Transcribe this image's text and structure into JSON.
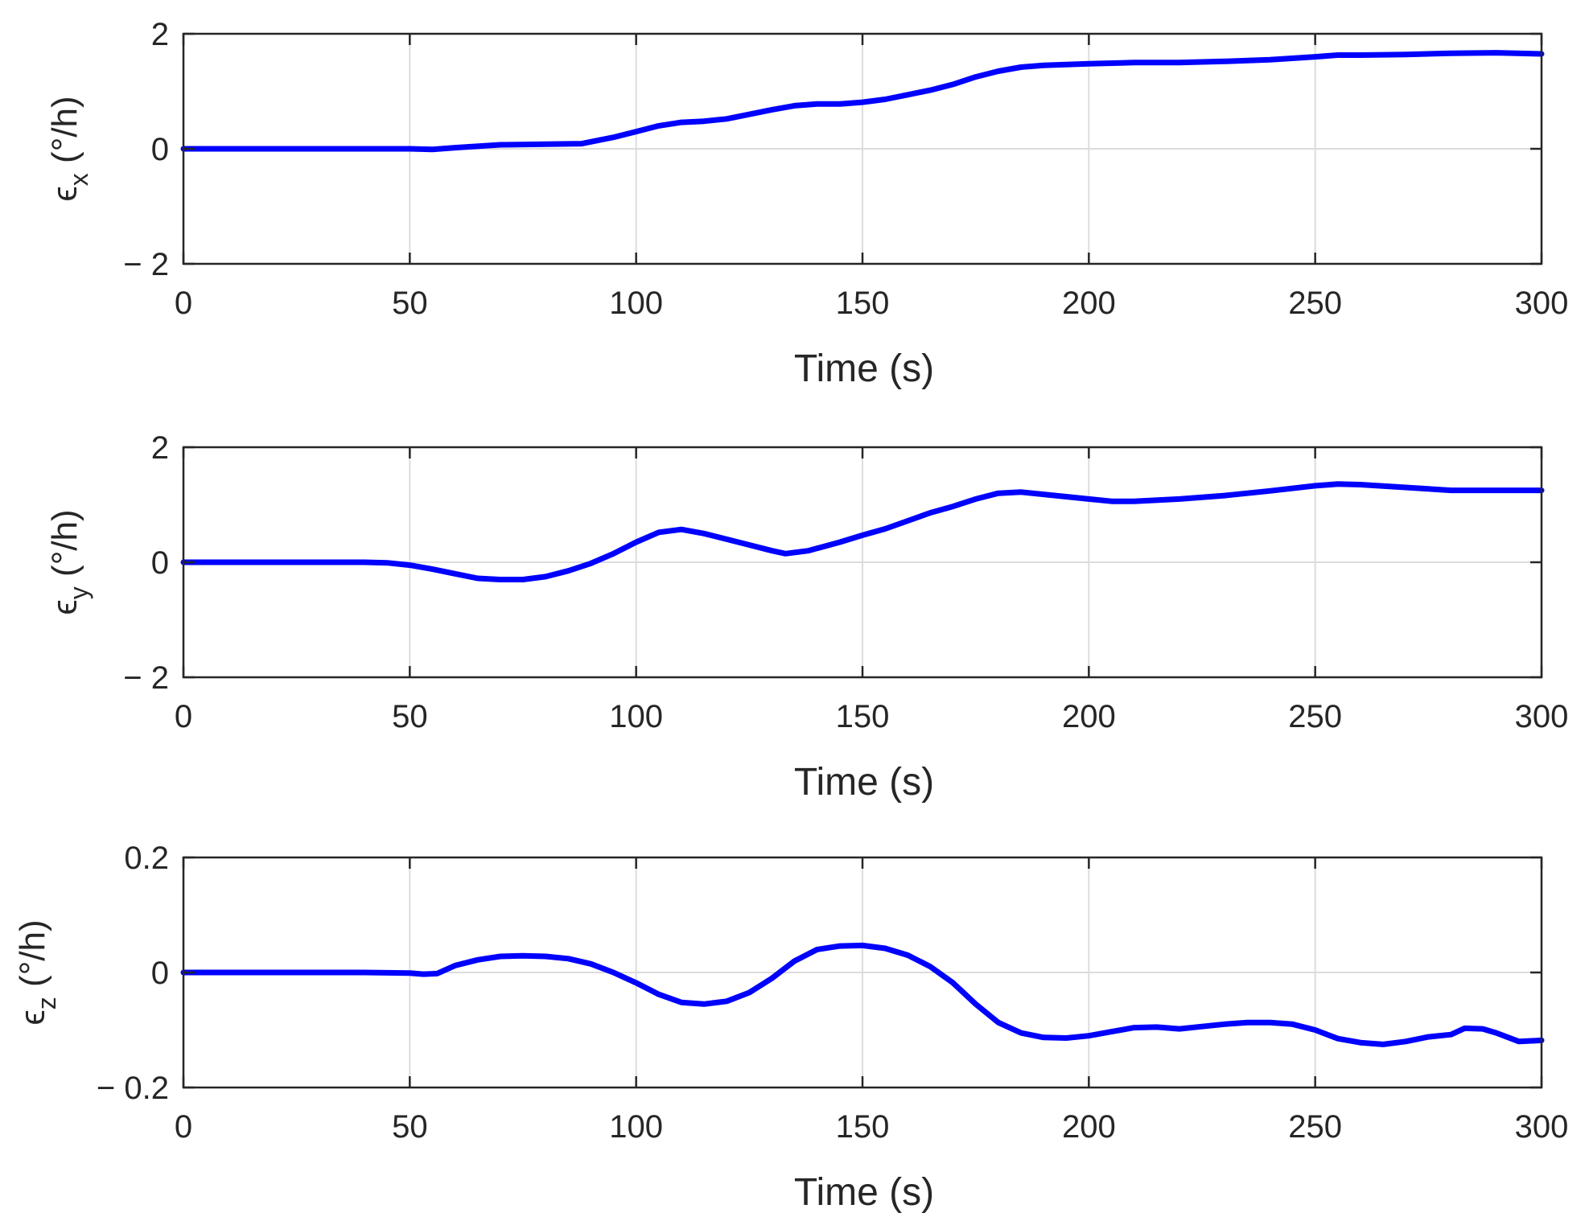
{
  "chart_data": [
    {
      "type": "line",
      "xlabel": "Time (s)",
      "ylabel": "(°/h)",
      "ylabel_symbol": "ϵ",
      "ylabel_sub": "x",
      "xlim": [
        0,
        300
      ],
      "ylim": [
        -2,
        2
      ],
      "xticks": [
        "0",
        "50",
        "100",
        "150",
        "200",
        "250",
        "300"
      ],
      "yticks": [
        "2",
        "0",
        "− 2"
      ],
      "ytick_values": [
        2,
        0,
        -2
      ],
      "grid": true,
      "line_color": "#0000ff",
      "series": [
        {
          "x": [
            0,
            20,
            40,
            50,
            55,
            60,
            70,
            80,
            88,
            95,
            100,
            105,
            110,
            115,
            120,
            130,
            135,
            140,
            145,
            150,
            155,
            160,
            165,
            170,
            175,
            180,
            185,
            190,
            200,
            210,
            220,
            230,
            240,
            250,
            255,
            260,
            270,
            280,
            290,
            300
          ],
          "y": [
            0,
            0,
            0,
            0,
            -0.01,
            0.02,
            0.07,
            0.08,
            0.09,
            0.2,
            0.3,
            0.4,
            0.46,
            0.48,
            0.52,
            0.68,
            0.75,
            0.78,
            0.78,
            0.81,
            0.86,
            0.94,
            1.02,
            1.12,
            1.25,
            1.35,
            1.42,
            1.45,
            1.48,
            1.5,
            1.5,
            1.52,
            1.55,
            1.6,
            1.63,
            1.63,
            1.64,
            1.66,
            1.67,
            1.65
          ]
        }
      ]
    },
    {
      "type": "line",
      "xlabel": "Time (s)",
      "ylabel": "(°/h)",
      "ylabel_symbol": "ϵ",
      "ylabel_sub": "y",
      "xlim": [
        0,
        300
      ],
      "ylim": [
        -2,
        2
      ],
      "xticks": [
        "0",
        "50",
        "100",
        "150",
        "200",
        "250",
        "300"
      ],
      "yticks": [
        "2",
        "0",
        "− 2"
      ],
      "ytick_values": [
        2,
        0,
        -2
      ],
      "grid": true,
      "line_color": "#0000ff",
      "series": [
        {
          "x": [
            0,
            20,
            40,
            45,
            50,
            55,
            60,
            65,
            70,
            75,
            80,
            85,
            90,
            95,
            100,
            105,
            110,
            115,
            120,
            125,
            130,
            133,
            138,
            145,
            150,
            155,
            160,
            165,
            170,
            175,
            180,
            185,
            190,
            200,
            205,
            210,
            220,
            230,
            240,
            250,
            255,
            260,
            270,
            280,
            290,
            300
          ],
          "y": [
            0,
            0,
            0,
            -0.01,
            -0.05,
            -0.12,
            -0.2,
            -0.28,
            -0.3,
            -0.3,
            -0.25,
            -0.15,
            -0.02,
            0.15,
            0.35,
            0.52,
            0.57,
            0.5,
            0.4,
            0.3,
            0.2,
            0.15,
            0.2,
            0.35,
            0.47,
            0.58,
            0.72,
            0.86,
            0.97,
            1.1,
            1.2,
            1.22,
            1.18,
            1.1,
            1.06,
            1.06,
            1.1,
            1.16,
            1.24,
            1.33,
            1.36,
            1.35,
            1.3,
            1.25,
            1.25,
            1.25
          ]
        }
      ]
    },
    {
      "type": "line",
      "xlabel": "Time (s)",
      "ylabel": "(°/h)",
      "ylabel_symbol": "ϵ",
      "ylabel_sub": "z",
      "xlim": [
        0,
        300
      ],
      "ylim": [
        -0.2,
        0.2
      ],
      "xticks": [
        "0",
        "50",
        "100",
        "150",
        "200",
        "250",
        "300"
      ],
      "yticks": [
        "0.2",
        "0",
        "− 0.2"
      ],
      "ytick_values": [
        0.2,
        0,
        -0.2
      ],
      "grid": true,
      "line_color": "#0000ff",
      "series": [
        {
          "x": [
            0,
            20,
            40,
            50,
            53,
            56,
            60,
            65,
            70,
            75,
            80,
            85,
            90,
            95,
            100,
            105,
            110,
            115,
            120,
            125,
            130,
            135,
            140,
            145,
            150,
            155,
            160,
            165,
            170,
            175,
            180,
            185,
            190,
            195,
            200,
            205,
            210,
            215,
            220,
            225,
            230,
            235,
            240,
            245,
            250,
            255,
            260,
            265,
            270,
            275,
            280,
            283,
            287,
            290,
            295,
            300
          ],
          "y": [
            0,
            0,
            0,
            -0.001,
            -0.003,
            -0.002,
            0.012,
            0.022,
            0.028,
            0.029,
            0.028,
            0.024,
            0.015,
            0.0,
            -0.018,
            -0.038,
            -0.052,
            -0.055,
            -0.05,
            -0.035,
            -0.01,
            0.02,
            0.04,
            0.046,
            0.047,
            0.042,
            0.03,
            0.01,
            -0.018,
            -0.055,
            -0.087,
            -0.105,
            -0.113,
            -0.114,
            -0.11,
            -0.103,
            -0.096,
            -0.095,
            -0.098,
            -0.094,
            -0.09,
            -0.087,
            -0.087,
            -0.09,
            -0.1,
            -0.115,
            -0.122,
            -0.125,
            -0.12,
            -0.112,
            -0.108,
            -0.097,
            -0.098,
            -0.105,
            -0.12,
            -0.118
          ]
        }
      ]
    }
  ]
}
